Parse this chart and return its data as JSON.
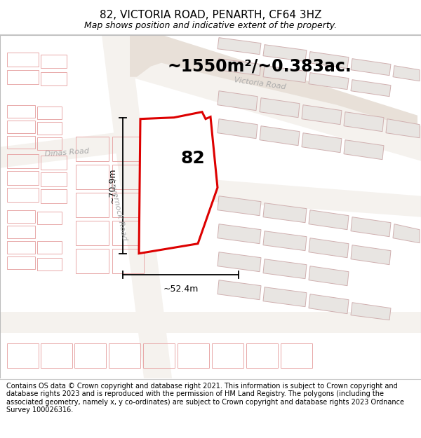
{
  "title": "82, VICTORIA ROAD, PENARTH, CF64 3HZ",
  "subtitle": "Map shows position and indicative extent of the property.",
  "footer": "Contains OS data © Crown copyright and database right 2021. This information is subject to Crown copyright and database rights 2023 and is reproduced with the permission of HM Land Registry. The polygons (including the associated geometry, namely x, y co-ordinates) are subject to Crown copyright and database rights 2023 Ordnance Survey 100026316.",
  "area_text": "~1550m²/~0.383ac.",
  "width_label": "~52.4m",
  "height_label": "~70.9m",
  "plot_number": "82",
  "map_bg": "#f7f5f2",
  "road_bg": "#ffffff",
  "open_land_color": "#e8e0d8",
  "road_surface": "#f0ece6",
  "building_fill": "#e8e4e0",
  "building_edge": "#c8b8b8",
  "pink_outline": "#e8a8a8",
  "road_label_color": "#aaaaaa",
  "red_plot": "#dd0000",
  "plot_fill": "#ffffff",
  "figure_width": 6.0,
  "figure_height": 6.25,
  "title_fontsize": 11,
  "subtitle_fontsize": 9,
  "footer_fontsize": 7,
  "area_fontsize": 17,
  "label_fontsize": 9,
  "plot_label_fontsize": 18,
  "road_fontsize": 8
}
